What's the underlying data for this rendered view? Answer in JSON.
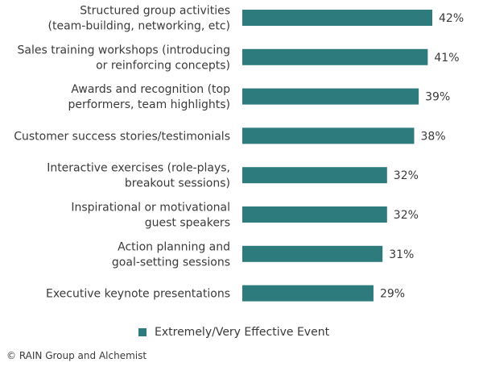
{
  "chart_data": {
    "type": "bar",
    "orientation": "horizontal",
    "categories": [
      [
        "Structured group activities",
        "(team-building, networking, etc)"
      ],
      [
        "Sales training workshops (introducing",
        "or reinforcing concepts)"
      ],
      [
        "Awards and recognition (top",
        "performers, team highlights)"
      ],
      [
        "Customer success stories/testimonials"
      ],
      [
        "Interactive exercises (role-plays,",
        "breakout sessions)"
      ],
      [
        "Inspirational or motivational",
        "guest speakers"
      ],
      [
        "Action planning and",
        "goal-setting sessions"
      ],
      [
        "Executive keynote presentations"
      ]
    ],
    "series": [
      {
        "name": "Extremely/Very Effective Event",
        "values": [
          42,
          41,
          39,
          38,
          32,
          32,
          31,
          29
        ],
        "labels": [
          "42%",
          "41%",
          "39%",
          "38%",
          "32%",
          "32%",
          "31%",
          "29%"
        ]
      }
    ],
    "xlim": [
      0,
      42
    ],
    "grid": false,
    "legend_position": "bottom",
    "bar_color": "#2e7b7e"
  },
  "footer": {
    "credit": "© RAIN Group and Alchemist"
  }
}
